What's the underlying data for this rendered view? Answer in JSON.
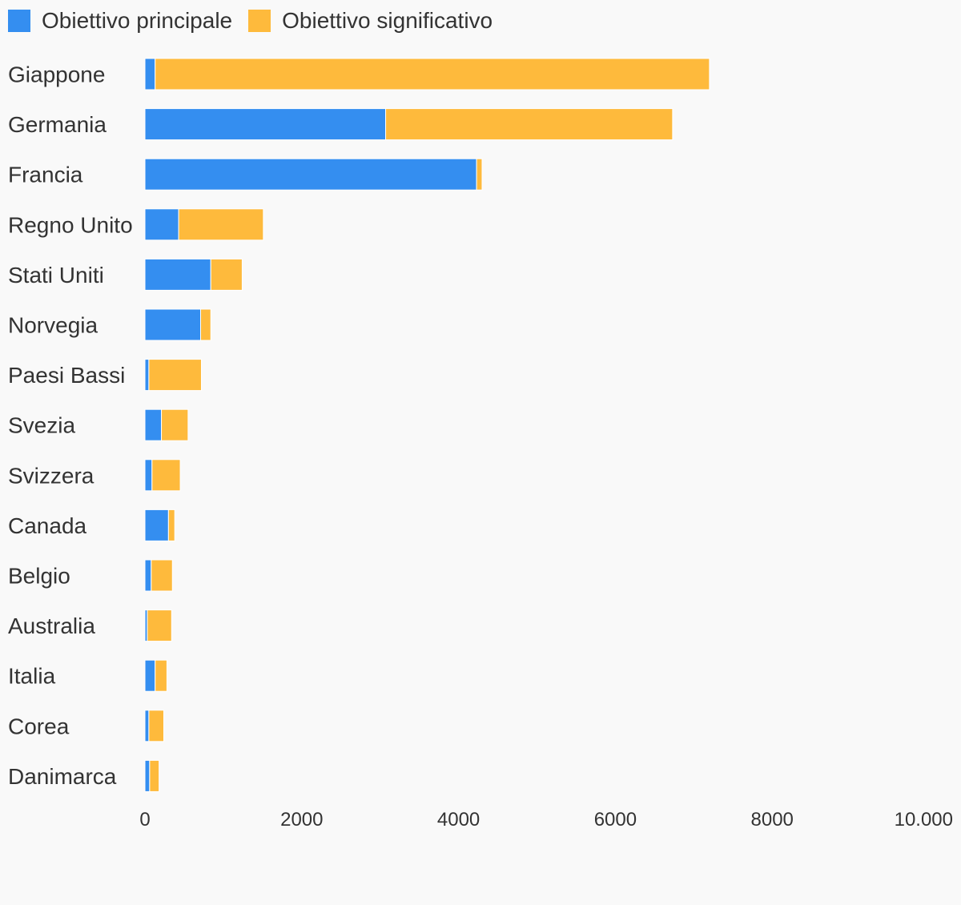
{
  "chart_data": {
    "type": "bar",
    "orientation": "horizontal",
    "stacked": true,
    "categories": [
      "Giappone",
      "Germania",
      "Francia",
      "Regno Unito",
      "Stati Uniti",
      "Norvegia",
      "Paesi Bassi",
      "Svezia",
      "Svizzera",
      "Canada",
      "Belgio",
      "Australia",
      "Italia",
      "Corea",
      "Danimarca"
    ],
    "series": [
      {
        "name": "Obiettivo principale",
        "color": "#348ef0",
        "values": [
          130,
          3070,
          4230,
          430,
          840,
          710,
          50,
          210,
          90,
          300,
          80,
          30,
          130,
          50,
          60
        ]
      },
      {
        "name": "Obiettivo significativo",
        "color": "#feba3c",
        "values": [
          7070,
          3660,
          70,
          1080,
          400,
          130,
          670,
          340,
          360,
          80,
          270,
          310,
          150,
          190,
          120
        ]
      }
    ],
    "xlim": [
      0,
      10000
    ],
    "xticks": [
      0,
      2000,
      4000,
      6000,
      8000,
      10000
    ],
    "xtick_labels": [
      "0",
      "2000",
      "4000",
      "6000",
      "8000",
      "10.000"
    ],
    "legend_position": "top-left",
    "grid": false,
    "title": "",
    "xlabel": "",
    "ylabel": ""
  }
}
